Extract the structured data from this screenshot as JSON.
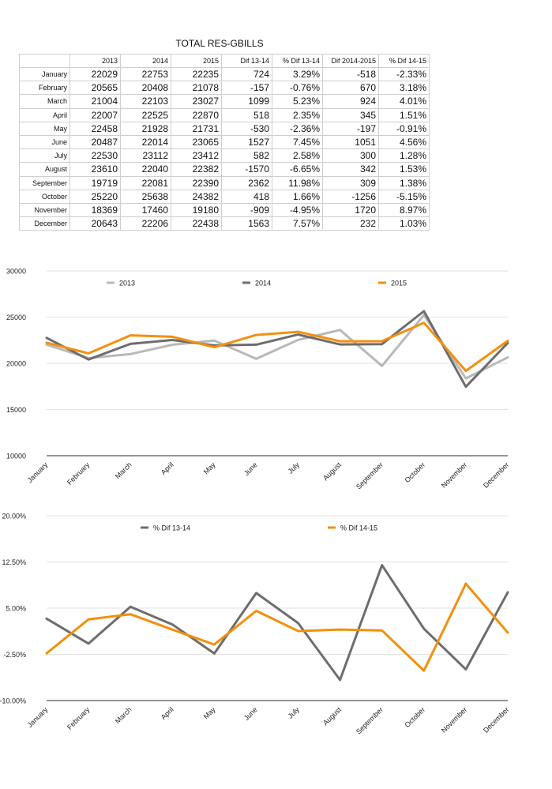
{
  "table": {
    "title": "TOTAL RES-GBILLS",
    "columns": [
      "2013",
      "2014",
      "2015",
      "Dif 13-14",
      "% Dif 13-14",
      "Dif 2014-2015",
      "% Dif 14-15"
    ],
    "rows": [
      {
        "month": "January",
        "cells": [
          "22029",
          "22753",
          "22235",
          "724",
          "3.29%",
          "-518",
          "-2.33%"
        ]
      },
      {
        "month": "February",
        "cells": [
          "20565",
          "20408",
          "21078",
          "-157",
          "-0.76%",
          "670",
          "3.18%"
        ]
      },
      {
        "month": "March",
        "cells": [
          "21004",
          "22103",
          "23027",
          "1099",
          "5.23%",
          "924",
          "4.01%"
        ]
      },
      {
        "month": "April",
        "cells": [
          "22007",
          "22525",
          "22870",
          "518",
          "2.35%",
          "345",
          "1.51%"
        ]
      },
      {
        "month": "May",
        "cells": [
          "22458",
          "21928",
          "21731",
          "-530",
          "-2.36%",
          "-197",
          "-0.91%"
        ]
      },
      {
        "month": "June",
        "cells": [
          "20487",
          "22014",
          "23065",
          "1527",
          "7.45%",
          "1051",
          "4.56%"
        ]
      },
      {
        "month": "July",
        "cells": [
          "22530",
          "23112",
          "23412",
          "582",
          "2.58%",
          "300",
          "1.28%"
        ]
      },
      {
        "month": "August",
        "cells": [
          "23610",
          "22040",
          "22382",
          "-1570",
          "-6.65%",
          "342",
          "1.53%"
        ]
      },
      {
        "month": "September",
        "cells": [
          "19719",
          "22081",
          "22390",
          "2362",
          "11.98%",
          "309",
          "1.38%"
        ]
      },
      {
        "month": "October",
        "cells": [
          "25220",
          "25638",
          "24382",
          "418",
          "1.66%",
          "-1256",
          "-5.15%"
        ]
      },
      {
        "month": "November",
        "cells": [
          "18369",
          "17460",
          "19180",
          "-909",
          "-4.95%",
          "1720",
          "8.97%"
        ]
      },
      {
        "month": "December",
        "cells": [
          "20643",
          "22206",
          "22438",
          "1563",
          "7.57%",
          "232",
          "1.03%"
        ]
      }
    ]
  },
  "chart_data": [
    {
      "type": "line",
      "categories": [
        "January",
        "February",
        "March",
        "April",
        "May",
        "June",
        "July",
        "August",
        "September",
        "October",
        "November",
        "December"
      ],
      "ylim": [
        10000,
        30000
      ],
      "yticks": [
        "10000",
        "15000",
        "20000",
        "25000",
        "30000"
      ],
      "ytick_values": [
        10000,
        15000,
        20000,
        25000,
        30000
      ],
      "grid": true,
      "legend": "top",
      "series": [
        {
          "name": "2013",
          "color": "#b9b9b9",
          "values": [
            22029,
            20565,
            21004,
            22007,
            22458,
            20487,
            22530,
            23610,
            19719,
            25220,
            18369,
            20643
          ]
        },
        {
          "name": "2014",
          "color": "#6d6d6d",
          "values": [
            22753,
            20408,
            22103,
            22525,
            21928,
            22014,
            23112,
            22040,
            22081,
            25638,
            17460,
            22206
          ]
        },
        {
          "name": "2015",
          "color": "#f3900e",
          "values": [
            22235,
            21078,
            23027,
            22870,
            21731,
            23065,
            23412,
            22382,
            22390,
            24382,
            19180,
            22438
          ]
        }
      ]
    },
    {
      "type": "line",
      "categories": [
        "January",
        "February",
        "March",
        "April",
        "May",
        "June",
        "July",
        "August",
        "September",
        "October",
        "November",
        "December"
      ],
      "ylim": [
        -10,
        20
      ],
      "yticks": [
        "-10.00%",
        "-2.50%",
        "5.00%",
        "12.50%",
        "20.00%"
      ],
      "ytick_values": [
        -10,
        -2.5,
        5,
        12.5,
        20
      ],
      "grid": true,
      "legend": "top",
      "series": [
        {
          "name": "% Dif 13-14",
          "color": "#6d6d6d",
          "values": [
            3.29,
            -0.76,
            5.23,
            2.35,
            -2.36,
            7.45,
            2.58,
            -6.65,
            11.98,
            1.66,
            -4.95,
            7.57
          ]
        },
        {
          "name": "% Dif 14-15",
          "color": "#f3900e",
          "values": [
            -2.33,
            3.18,
            4.01,
            1.51,
            -0.91,
            4.56,
            1.28,
            1.53,
            1.38,
            -5.15,
            8.97,
            1.03
          ]
        }
      ]
    }
  ]
}
